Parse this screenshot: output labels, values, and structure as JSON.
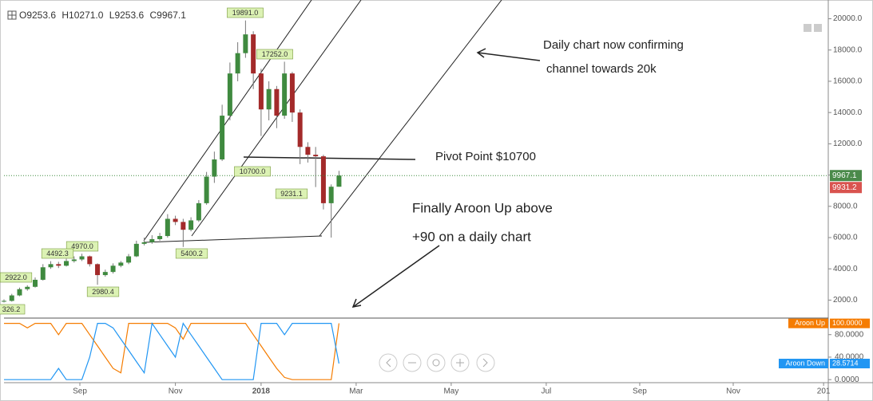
{
  "chart_data": [
    {
      "type": "candlestick",
      "header": [
        "O9253.6",
        "H10271.0",
        "L9253.6",
        "C9967.1"
      ],
      "x": [
        0,
        5,
        10,
        15,
        20,
        25,
        30,
        35,
        40,
        45,
        50,
        55,
        60,
        65,
        70,
        75,
        80,
        85,
        90,
        95,
        100,
        105,
        110,
        115,
        120,
        125,
        130,
        135,
        140,
        145,
        150,
        155,
        160,
        165,
        170,
        175,
        180,
        185,
        190,
        195,
        200,
        205,
        210,
        215
      ],
      "open": [
        1900,
        1950,
        2300,
        2700,
        2850,
        3300,
        4100,
        4300,
        4200,
        4500,
        4600,
        4800,
        4300,
        3600,
        3800,
        4200,
        4400,
        4800,
        5600,
        5700,
        5900,
        6100,
        7200,
        7000,
        6500,
        7100,
        8200,
        9900,
        11000,
        13800,
        16500,
        17800,
        19000,
        16500,
        14200,
        15500,
        13800,
        16500,
        14000,
        11800,
        11300,
        11200,
        8200,
        9253.6
      ],
      "high": [
        2050,
        2400,
        2800,
        2950,
        3450,
        4300,
        4490,
        4450,
        4650,
        4800,
        4970,
        4850,
        4350,
        3950,
        4350,
        4500,
        4950,
        5800,
        6000,
        6150,
        6300,
        7500,
        7400,
        7200,
        7300,
        8400,
        10200,
        11500,
        14500,
        17200,
        18500,
        19891,
        19200,
        16800,
        16000,
        15700,
        17252,
        16600,
        14200,
        12100,
        11800,
        11300,
        9400,
        10271
      ],
      "low": [
        1850,
        1900,
        2250,
        2600,
        2800,
        3250,
        4000,
        4050,
        4150,
        4400,
        4500,
        4150,
        2980,
        3500,
        3700,
        4100,
        4300,
        4750,
        5500,
        5600,
        5800,
        6000,
        6800,
        5400,
        6400,
        7000,
        8100,
        9500,
        10900,
        13500,
        16000,
        17500,
        15500,
        12500,
        13500,
        13000,
        13600,
        13400,
        10700,
        10800,
        9231,
        7800,
        6000,
        9253.6
      ],
      "close": [
        1950,
        2300,
        2700,
        2850,
        3300,
        4100,
        4300,
        4200,
        4500,
        4600,
        4800,
        4300,
        3600,
        3800,
        4200,
        4400,
        4800,
        5600,
        5700,
        5900,
        6100,
        7200,
        7000,
        6500,
        7100,
        8200,
        9900,
        11000,
        13800,
        16500,
        17800,
        19000,
        16500,
        14200,
        15500,
        13800,
        16500,
        14000,
        11800,
        11300,
        11200,
        8200,
        9253.6,
        9967.1
      ],
      "up_color": "#3f8a3f",
      "down_color": "#a32a2a",
      "xlim": [
        0,
        529
      ],
      "ylim": [
        900,
        21200
      ],
      "yticks": [
        {
          "value": 2000,
          "label": "2000.0"
        },
        {
          "value": 4000,
          "label": "4000.0"
        },
        {
          "value": 6000,
          "label": "6000.0"
        },
        {
          "value": 8000,
          "label": "8000.0"
        },
        {
          "value": 10000,
          "label": "10000.0"
        },
        {
          "value": 12000,
          "label": "12000.0"
        },
        {
          "value": 14000,
          "label": "14000.0"
        },
        {
          "value": 16000,
          "label": "16000.0"
        },
        {
          "value": 18000,
          "label": "18000.0"
        },
        {
          "value": 20000,
          "label": "20000.0"
        }
      ],
      "price_labels": [
        "19891.0",
        "17252.0",
        "10700.0",
        "9231.1",
        "5400.2",
        "4970.0",
        "4492.3",
        "2922.0",
        "2980.4",
        "326.2"
      ],
      "price_tags": [
        "9967.1",
        "9931.2"
      ],
      "annotations": [
        "Daily chart now confirming",
        "channel towards 20k",
        "Pivot Point $10700",
        "Finally Aroon Up above",
        "+90 on a daily chart"
      ]
    },
    {
      "type": "line",
      "x": [
        0,
        5,
        10,
        15,
        20,
        25,
        30,
        35,
        40,
        45,
        50,
        55,
        60,
        65,
        70,
        75,
        80,
        85,
        90,
        95,
        100,
        105,
        110,
        115,
        120,
        125,
        130,
        135,
        140,
        145,
        150,
        155,
        160,
        165,
        170,
        175,
        180,
        185,
        190,
        195,
        200,
        205,
        210,
        215
      ],
      "series": [
        {
          "name": "Aroon Up",
          "color": "#f57c00",
          "value_label": "100.0000",
          "values": [
            100,
            100,
            100,
            92,
            100,
            100,
            100,
            80,
            100,
            100,
            100,
            80,
            60,
            40,
            20,
            12,
            100,
            100,
            100,
            100,
            100,
            100,
            92,
            72,
            100,
            100,
            100,
            100,
            100,
            100,
            100,
            100,
            80,
            60,
            40,
            20,
            4,
            0,
            0,
            0,
            0,
            0,
            0,
            100
          ]
        },
        {
          "name": "Aroon Down",
          "color": "#2196f3",
          "value_label": "28.5714",
          "values": [
            0,
            0,
            0,
            0,
            0,
            0,
            0,
            20,
            0,
            0,
            0,
            40,
            100,
            100,
            92,
            72,
            52,
            32,
            12,
            100,
            80,
            60,
            40,
            100,
            80,
            60,
            40,
            20,
            0,
            0,
            0,
            0,
            0,
            100,
            100,
            100,
            80,
            100,
            100,
            100,
            100,
            100,
            100,
            28.5714
          ]
        }
      ],
      "xlim": [
        0,
        529
      ],
      "ylim": [
        -4,
        108
      ],
      "yticks": [
        {
          "value": 0,
          "label": "0.0000"
        },
        {
          "value": 40,
          "label": "40.0000"
        },
        {
          "value": 80,
          "label": "80.0000"
        }
      ],
      "xticks": [
        {
          "value": 48.7,
          "label": "Sep"
        },
        {
          "value": 110,
          "label": "Nov"
        },
        {
          "value": 165,
          "label": "2018"
        },
        {
          "value": 226,
          "label": "Mar"
        },
        {
          "value": 287,
          "label": "May"
        },
        {
          "value": 348,
          "label": "Jul"
        },
        {
          "value": 408,
          "label": "Sep"
        },
        {
          "value": 468,
          "label": "Nov"
        },
        {
          "value": 526,
          "label": "201"
        }
      ]
    }
  ]
}
